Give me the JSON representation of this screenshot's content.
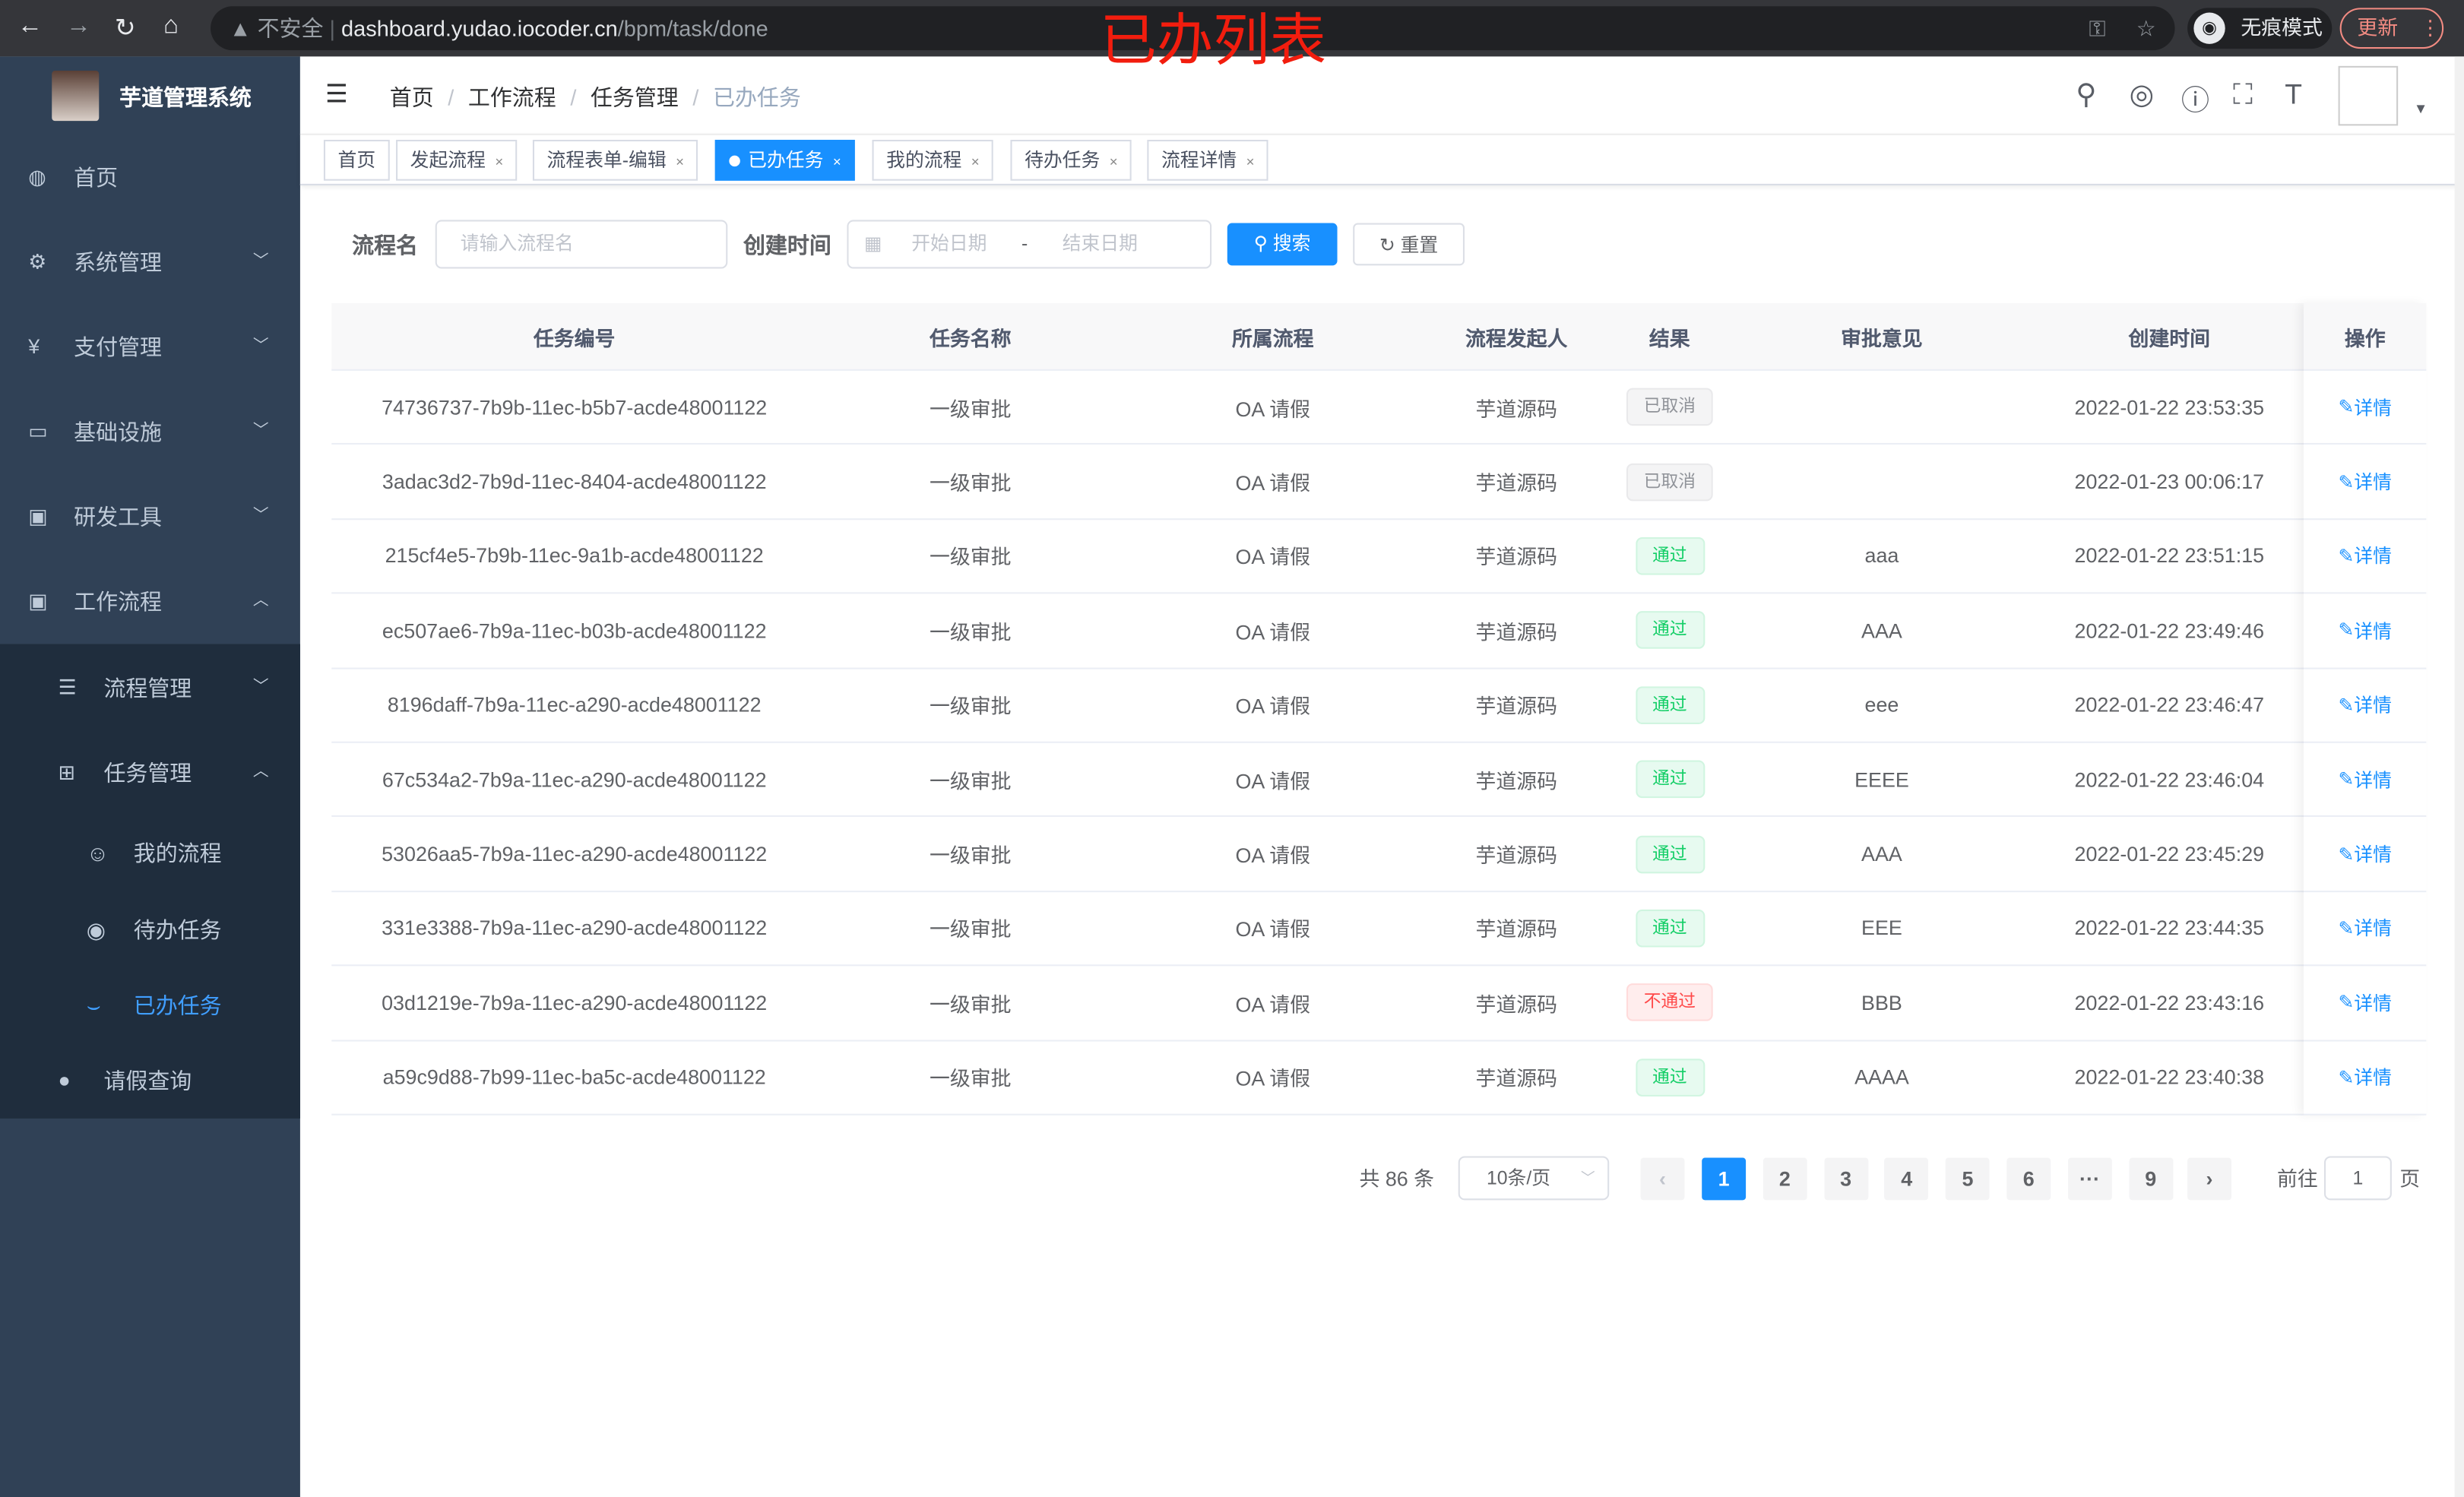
{
  "browser": {
    "security": "不安全",
    "url_host": "dashboard.yudao.iocoder.cn",
    "url_path": "/bpm/task/done",
    "incognito": "无痕模式",
    "update": "更新"
  },
  "annotation": "已办列表",
  "app": {
    "title": "芋道管理系统"
  },
  "sidebar": {
    "items": [
      {
        "label": "首页",
        "icon": "dashboard-icon"
      },
      {
        "label": "系统管理",
        "icon": "gear-icon"
      },
      {
        "label": "支付管理",
        "icon": "yen-icon"
      },
      {
        "label": "基础设施",
        "icon": "monitor-icon"
      },
      {
        "label": "研发工具",
        "icon": "toolbox-icon"
      },
      {
        "label": "工作流程",
        "icon": "toolbox-icon"
      }
    ],
    "sub": {
      "flow_manage": "流程管理",
      "task_manage": "任务管理",
      "my_process": "我的流程",
      "todo": "待办任务",
      "done": "已办任务",
      "leave": "请假查询"
    }
  },
  "breadcrumb": [
    "首页",
    "工作流程",
    "任务管理",
    "已办任务"
  ],
  "tags": [
    "首页",
    "发起流程",
    "流程表单-编辑",
    "已办任务",
    "我的流程",
    "待办任务",
    "流程详情"
  ],
  "search": {
    "name_label": "流程名",
    "name_placeholder": "请输入流程名",
    "time_label": "创建时间",
    "start_placeholder": "开始日期",
    "sep": "-",
    "end_placeholder": "结束日期",
    "search": "搜索",
    "reset": "重置"
  },
  "table": {
    "headers": [
      "任务编号",
      "任务名称",
      "所属流程",
      "流程发起人",
      "结果",
      "审批意见",
      "创建时间",
      "操作"
    ],
    "rows": [
      {
        "id": "74736737-7b9b-11ec-b5b7-acde48001122",
        "name": "一级审批",
        "process": "OA 请假",
        "starter": "芋道源码",
        "result": "已取消",
        "status": "cancel",
        "opinion": "",
        "time": "2022-01-22 23:53:35",
        "action": "详情"
      },
      {
        "id": "3adac3d2-7b9d-11ec-8404-acde48001122",
        "name": "一级审批",
        "process": "OA 请假",
        "starter": "芋道源码",
        "result": "已取消",
        "status": "cancel",
        "opinion": "",
        "time": "2022-01-23 00:06:17",
        "action": "详情"
      },
      {
        "id": "215cf4e5-7b9b-11ec-9a1b-acde48001122",
        "name": "一级审批",
        "process": "OA 请假",
        "starter": "芋道源码",
        "result": "通过",
        "status": "pass",
        "opinion": "aaa",
        "time": "2022-01-22 23:51:15",
        "action": "详情"
      },
      {
        "id": "ec507ae6-7b9a-11ec-b03b-acde48001122",
        "name": "一级审批",
        "process": "OA 请假",
        "starter": "芋道源码",
        "result": "通过",
        "status": "pass",
        "opinion": "AAA",
        "time": "2022-01-22 23:49:46",
        "action": "详情"
      },
      {
        "id": "8196daff-7b9a-11ec-a290-acde48001122",
        "name": "一级审批",
        "process": "OA 请假",
        "starter": "芋道源码",
        "result": "通过",
        "status": "pass",
        "opinion": "eee",
        "time": "2022-01-22 23:46:47",
        "action": "详情"
      },
      {
        "id": "67c534a2-7b9a-11ec-a290-acde48001122",
        "name": "一级审批",
        "process": "OA 请假",
        "starter": "芋道源码",
        "result": "通过",
        "status": "pass",
        "opinion": "EEEE",
        "time": "2022-01-22 23:46:04",
        "action": "详情"
      },
      {
        "id": "53026aa5-7b9a-11ec-a290-acde48001122",
        "name": "一级审批",
        "process": "OA 请假",
        "starter": "芋道源码",
        "result": "通过",
        "status": "pass",
        "opinion": "AAA",
        "time": "2022-01-22 23:45:29",
        "action": "详情"
      },
      {
        "id": "331e3388-7b9a-11ec-a290-acde48001122",
        "name": "一级审批",
        "process": "OA 请假",
        "starter": "芋道源码",
        "result": "通过",
        "status": "pass",
        "opinion": "EEE",
        "time": "2022-01-22 23:44:35",
        "action": "详情"
      },
      {
        "id": "03d1219e-7b9a-11ec-a290-acde48001122",
        "name": "一级审批",
        "process": "OA 请假",
        "starter": "芋道源码",
        "result": "不通过",
        "status": "fail",
        "opinion": "BBB",
        "time": "2022-01-22 23:43:16",
        "action": "详情"
      },
      {
        "id": "a59c9d88-7b99-11ec-ba5c-acde48001122",
        "name": "一级审批",
        "process": "OA 请假",
        "starter": "芋道源码",
        "result": "通过",
        "status": "pass",
        "opinion": "AAAA",
        "time": "2022-01-22 23:40:38",
        "action": "详情"
      }
    ]
  },
  "pagination": {
    "total": "共 86 条",
    "page_size": "10条/页",
    "pages": [
      "1",
      "2",
      "3",
      "4",
      "5",
      "6",
      "···",
      "9"
    ],
    "current": "1",
    "goto_label": "前往",
    "goto_value": "1",
    "page_suffix": "页"
  },
  "colors": {
    "accent": "#1890ff",
    "sidebar": "#304156",
    "submenu": "#1f2d3d",
    "annotation": "#f21d0e"
  }
}
